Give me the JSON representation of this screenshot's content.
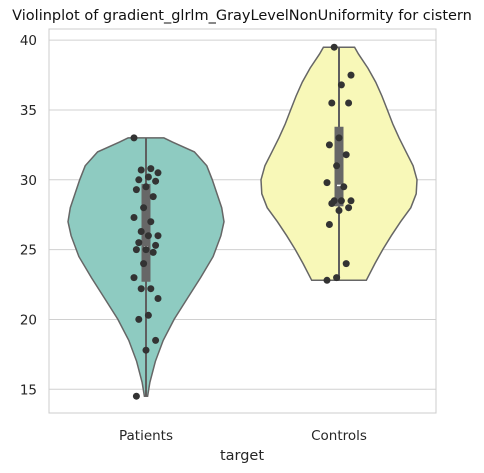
{
  "chart_data": {
    "type": "violin",
    "title": "Violinplot of gradient_glrlm_GrayLevelNonUniformity for cistern",
    "xlabel": "target",
    "ylabel": "",
    "categories": [
      "Patients",
      "Controls"
    ],
    "ylim": [
      13.3,
      40.8
    ],
    "yticks": [
      15,
      20,
      25,
      30,
      35,
      40
    ],
    "grid": true,
    "colors": {
      "Patients": "#8ecbc1",
      "Controls": "#f8f8b8",
      "outline": "#666666",
      "points": "#333333",
      "grid": "#d0d0d0"
    },
    "series": [
      {
        "name": "Patients",
        "box": {
          "q1": 22.7,
          "median": 25.2,
          "q3": 29.7,
          "whisker_low": 14.5,
          "whisker_high": 33.0
        },
        "density": [
          [
            14.5,
            0.02
          ],
          [
            15.5,
            0.05
          ],
          [
            17,
            0.12
          ],
          [
            18.5,
            0.22
          ],
          [
            20,
            0.36
          ],
          [
            21.5,
            0.53
          ],
          [
            23,
            0.7
          ],
          [
            24.5,
            0.86
          ],
          [
            26,
            0.96
          ],
          [
            27,
            1.0
          ],
          [
            28,
            0.97
          ],
          [
            29,
            0.91
          ],
          [
            30,
            0.85
          ],
          [
            31,
            0.78
          ],
          [
            32,
            0.62
          ],
          [
            32.7,
            0.34
          ],
          [
            33,
            0.23
          ]
        ],
        "points": [
          33.0,
          30.8,
          30.7,
          30.5,
          30.2,
          30.0,
          29.9,
          29.5,
          29.3,
          28.8,
          28.0,
          27.3,
          27.0,
          26.3,
          26.0,
          26.0,
          25.5,
          25.3,
          25.0,
          25.0,
          24.8,
          24.0,
          23.0,
          22.2,
          22.2,
          21.5,
          20.3,
          20.0,
          18.5,
          17.8,
          14.5
        ]
      },
      {
        "name": "Controls",
        "box": {
          "q1": 28.1,
          "median": 29.6,
          "q3": 33.8,
          "whisker_low": 22.8,
          "whisker_high": 39.5
        },
        "density": [
          [
            22.8,
            0.35
          ],
          [
            24,
            0.46
          ],
          [
            25,
            0.56
          ],
          [
            26,
            0.67
          ],
          [
            27,
            0.79
          ],
          [
            28,
            0.92
          ],
          [
            29,
            0.99
          ],
          [
            30,
            1.0
          ],
          [
            31,
            0.95
          ],
          [
            32,
            0.86
          ],
          [
            33,
            0.77
          ],
          [
            34,
            0.69
          ],
          [
            35,
            0.62
          ],
          [
            36,
            0.55
          ],
          [
            37,
            0.47
          ],
          [
            38,
            0.37
          ],
          [
            39,
            0.25
          ],
          [
            39.5,
            0.2
          ]
        ],
        "points": [
          39.5,
          37.5,
          36.8,
          35.5,
          35.5,
          33.0,
          32.5,
          31.8,
          31.0,
          29.8,
          29.5,
          28.5,
          28.5,
          28.5,
          28.3,
          28.0,
          27.8,
          26.8,
          24.0,
          23.0,
          22.8
        ]
      }
    ]
  }
}
